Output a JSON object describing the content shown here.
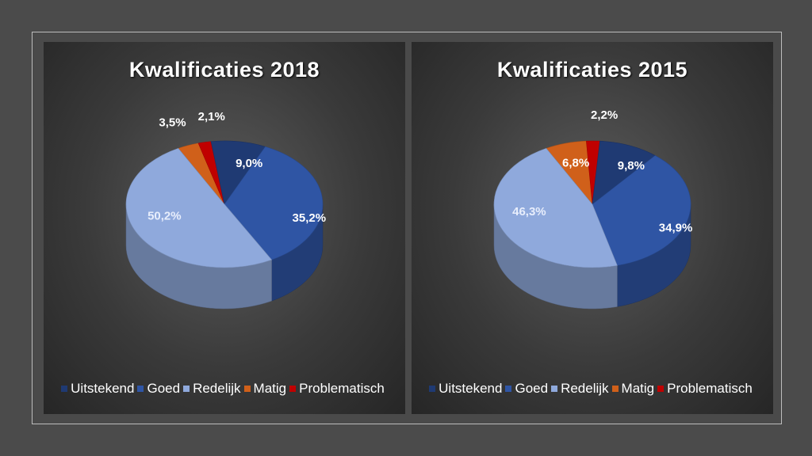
{
  "chart_data": [
    {
      "type": "pie",
      "title": "Kwalificaties 2018",
      "categories": [
        "Uitstekend",
        "Goed",
        "Redelijk",
        "Matig",
        "Problematisch"
      ],
      "values": [
        9.0,
        35.2,
        50.2,
        3.5,
        2.1
      ],
      "data_labels": [
        "9,0%",
        "35,2%",
        "50,2%",
        "3,5%",
        "2,1%"
      ],
      "colors": [
        "#1f3a73",
        "#2f55a4",
        "#8fa9dc",
        "#d0601a",
        "#c00000"
      ],
      "legend_position": "bottom",
      "style": "3d"
    },
    {
      "type": "pie",
      "title": "Kwalificaties 2015",
      "categories": [
        "Uitstekend",
        "Goed",
        "Redelijk",
        "Matig",
        "Problematisch"
      ],
      "values": [
        9.8,
        34.9,
        46.3,
        6.8,
        2.2
      ],
      "data_labels": [
        "9,8%",
        "34,9%",
        "46,3%",
        "6,8%",
        "2,2%"
      ],
      "colors": [
        "#1f3a73",
        "#2f55a4",
        "#8fa9dc",
        "#d0601a",
        "#c00000"
      ],
      "legend_position": "bottom",
      "style": "3d"
    }
  ]
}
